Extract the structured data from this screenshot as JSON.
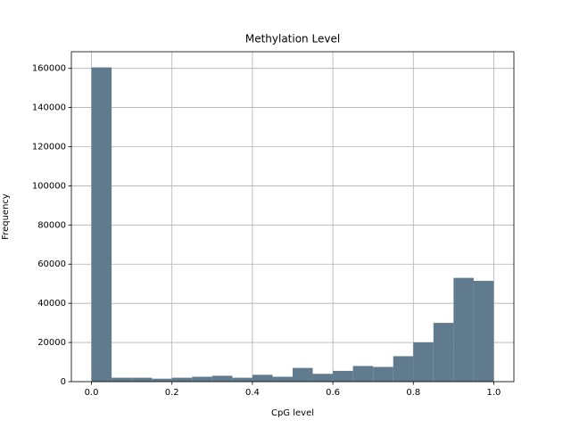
{
  "chart_data": {
    "type": "histogram",
    "title": "Methylation Level",
    "x_label": "CpG level",
    "y_label": "Frequency",
    "color": "#607b8d",
    "bins": [
      0,
      0.05,
      0.1,
      0.15,
      0.2,
      0.25,
      0.3,
      0.35,
      0.4,
      0.45,
      0.5,
      0.55,
      0.6,
      0.65,
      0.7,
      0.75,
      0.8,
      0.85,
      0.9,
      0.95,
      1.0
    ],
    "counts": [
      160500,
      2000,
      2000,
      1500,
      2000,
      2500,
      3000,
      2000,
      3500,
      2500,
      7000,
      4000,
      5500,
      8000,
      7500,
      13000,
      20000,
      30000,
      53000,
      51500
    ],
    "xlim": [
      -0.05,
      1.05
    ],
    "xticks": [
      {
        "value": 0,
        "label": "0.0"
      },
      {
        "value": 0.2,
        "label": "0.2"
      },
      {
        "value": 0.4,
        "label": "0.4"
      },
      {
        "value": 0.6,
        "label": "0.6"
      },
      {
        "value": 0.8,
        "label": "0.8"
      },
      {
        "value": 1.0,
        "label": "1.0"
      }
    ],
    "ylim": [
      0,
      168500
    ],
    "yticks": [
      0,
      20000,
      40000,
      60000,
      80000,
      100000,
      120000,
      140000,
      160000
    ],
    "grid": true
  }
}
